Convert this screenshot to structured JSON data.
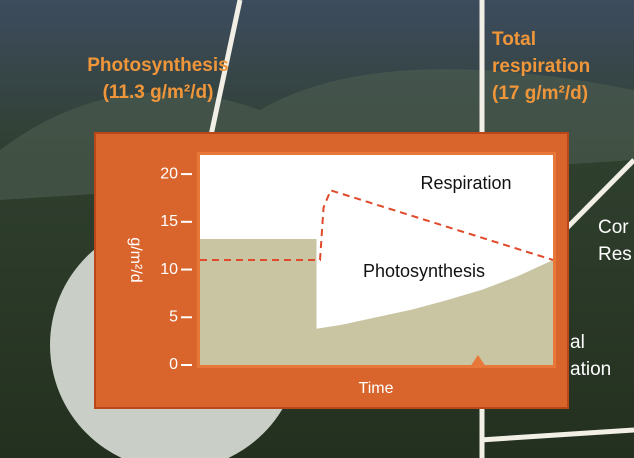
{
  "background_labels": [
    {
      "lines": [
        "Photosynthesis",
        "(11.3 g/m²/d)"
      ]
    },
    {
      "lines": [
        "Total",
        "respiration",
        "(17 g/m²/d)"
      ]
    },
    {
      "lines": [
        "Cor",
        "Res"
      ]
    },
    {
      "lines": [
        "al",
        "ation"
      ]
    }
  ],
  "chart_data": {
    "type": "area",
    "y_label": "g/m²/d",
    "x_label": "Time",
    "xlim": [
      0,
      100
    ],
    "ylim": [
      0,
      22
    ],
    "yticks": [
      0,
      5,
      10,
      15,
      20
    ],
    "annotations": [
      "Respiration",
      "Photosynthesis"
    ],
    "series": [
      {
        "name": "Photosynthesis",
        "style": "filled",
        "color": "#c9c4a2",
        "x": [
          0,
          33,
          33,
          40,
          50,
          60,
          70,
          80,
          90,
          100
        ],
        "values": [
          13.2,
          13.2,
          3.8,
          4.2,
          5,
          5.8,
          6.8,
          7.9,
          9.3,
          11
        ]
      },
      {
        "name": "Respiration",
        "style": "dashed",
        "color": "#e0492a",
        "x": [
          0,
          34,
          35,
          37,
          100
        ],
        "values": [
          11,
          11,
          16.5,
          18.3,
          11
        ]
      }
    ]
  }
}
